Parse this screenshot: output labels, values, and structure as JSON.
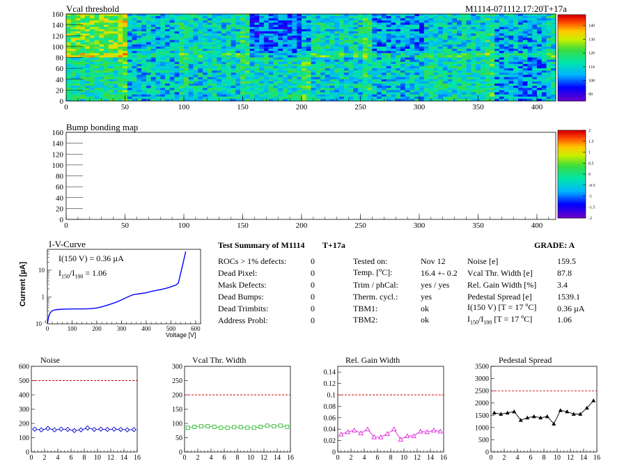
{
  "vcal_map": {
    "title": "Vcal threshold",
    "run_label": "M1114-071112.17:20T+17a",
    "xlim": [
      0,
      416
    ],
    "ylim": [
      0,
      160
    ],
    "xticks": [
      "0",
      "50",
      "100",
      "150",
      "200",
      "250",
      "300",
      "350",
      "400"
    ],
    "yticks": [
      "0",
      "20",
      "40",
      "60",
      "80",
      "100",
      "120",
      "140",
      "160"
    ],
    "zlim": [
      85,
      148
    ],
    "zticks": [
      "90",
      "100",
      "110",
      "120",
      "130",
      "140"
    ]
  },
  "bump_map": {
    "title": "Bump bonding map",
    "xlim": [
      0,
      416
    ],
    "ylim": [
      0,
      160
    ],
    "xticks": [
      "0",
      "50",
      "100",
      "150",
      "200",
      "250",
      "300",
      "350",
      "400"
    ],
    "yticks": [
      "0",
      "20",
      "40",
      "60",
      "80",
      "100",
      "120",
      "140",
      "160"
    ],
    "zlim": [
      -2,
      2
    ],
    "zticks": [
      "-2",
      "-1.5",
      "-1",
      "-0.5",
      "0",
      "0.5",
      "1",
      "1.5",
      "2"
    ]
  },
  "iv_curve": {
    "title": "I-V-Curve",
    "annotation_i150": "I(150 V) = 0.36 µA",
    "annotation_ratio_main": "I",
    "annotation_ratio_sub1": "150",
    "annotation_ratio_sep": "/I",
    "annotation_ratio_sub2": "100",
    "annotation_ratio_value": " =  1.06",
    "ylabel": "Current [µA]",
    "xlabel": "Voltage [V]",
    "xticks": [
      "0",
      "100",
      "200",
      "300",
      "400",
      "500",
      "600"
    ],
    "yticks": [
      "10",
      "1",
      "10"
    ],
    "ytick_low_exp": "-1",
    "xlim": [
      0,
      620
    ],
    "ylim_log": [
      0.1,
      60
    ],
    "curve_color": "#0000ff",
    "voltage": [
      0,
      5,
      10,
      20,
      30,
      40,
      60,
      80,
      100,
      120,
      150,
      180,
      200,
      220,
      250,
      280,
      300,
      320,
      340,
      350,
      360,
      380,
      400,
      420,
      440,
      460,
      480,
      500,
      520,
      530,
      540,
      550,
      560
    ],
    "current": [
      0.1,
      0.18,
      0.25,
      0.31,
      0.33,
      0.34,
      0.35,
      0.355,
      0.36,
      0.36,
      0.36,
      0.37,
      0.39,
      0.43,
      0.52,
      0.65,
      0.78,
      0.95,
      1.15,
      1.25,
      1.28,
      1.35,
      1.45,
      1.6,
      1.75,
      1.9,
      2.1,
      2.4,
      2.8,
      3.3,
      8,
      20,
      50
    ]
  },
  "summary": {
    "title": "Test Summary of M1114",
    "tag": "T+17a",
    "grade": "GRADE:  A",
    "defects": [
      {
        "label": "ROCs > 1% defects:",
        "value": "0"
      },
      {
        "label": "Dead Pixel:",
        "value": "0"
      },
      {
        "label": "Mask Defects:",
        "value": "0"
      },
      {
        "label": "Dead Bumps:",
        "value": "0"
      },
      {
        "label": "Dead Trimbits:",
        "value": "0"
      },
      {
        "label": "Address Probl:",
        "value": "0"
      }
    ],
    "tested_on_label": "Tested on:",
    "tested_on_value": "Nov 12",
    "temp_label_pre": "Temp. [",
    "temp_label_sup": "o",
    "temp_label_post": "C]:",
    "temp_value": "16.4 +- 0.2",
    "trim_label": "Trim / phCal:",
    "trim_value": "yes / yes",
    "therm_label": "Therm. cycl.:",
    "therm_value": "yes",
    "tbm1_label": "TBM1:",
    "tbm1_value": "ok",
    "tbm2_label": "TBM2:",
    "tbm2_value": "ok",
    "noise_label": "Noise [e]",
    "noise_value": "159.5",
    "vcal_width_label": "Vcal Thr. Width [e]",
    "vcal_width_value": "87.8",
    "gain_width_label": "Rel. Gain Width [%]",
    "gain_width_value": "3.4",
    "ped_spread_label": "Pedestal Spread [e]",
    "ped_spread_value": "1539.1",
    "i150_label_pre": "I(150 V) [T = 17 ",
    "i150_label_sup": "o",
    "i150_label_post": "C]",
    "i150_value": "0.36 µA",
    "ratio_label_i": "I",
    "ratio_label_sub1": "150",
    "ratio_label_sep": "/I",
    "ratio_label_sub2": "100",
    "ratio_label_pre": "  [T = 17 ",
    "ratio_label_sup": "o",
    "ratio_label_post": "C]",
    "ratio_value": "1.06"
  },
  "chart_data": [
    {
      "type": "scatter",
      "title": "Noise",
      "x": [
        0,
        1,
        2,
        3,
        4,
        5,
        6,
        7,
        8,
        9,
        10,
        11,
        12,
        13,
        14,
        15
      ],
      "values": [
        160,
        155,
        165,
        155,
        160,
        158,
        150,
        155,
        168,
        158,
        160,
        158,
        160,
        158,
        155,
        157
      ],
      "ylim": [
        0,
        600
      ],
      "xlim": [
        0,
        16
      ],
      "yticks": [
        "0",
        "100",
        "200",
        "300",
        "400",
        "500",
        "600"
      ],
      "xticks": [
        "0",
        "2",
        "4",
        "6",
        "8",
        "10",
        "12",
        "14",
        "16"
      ],
      "threshold": 500,
      "color": "#0000cc",
      "marker": "diamond"
    },
    {
      "type": "scatter",
      "title": "Vcal Thr. Width",
      "x": [
        0,
        1,
        2,
        3,
        4,
        5,
        6,
        7,
        8,
        9,
        10,
        11,
        12,
        13,
        14,
        15
      ],
      "values": [
        85,
        88,
        90,
        90,
        88,
        85,
        85,
        87,
        87,
        85,
        85,
        88,
        92,
        90,
        92,
        88
      ],
      "ylim": [
        0,
        300
      ],
      "xlim": [
        0,
        16
      ],
      "yticks": [
        "0",
        "50",
        "100",
        "150",
        "200",
        "250",
        "300"
      ],
      "xticks": [
        "0",
        "2",
        "4",
        "6",
        "8",
        "10",
        "12",
        "14",
        "16"
      ],
      "threshold": 200,
      "color": "#33bb33",
      "marker": "square"
    },
    {
      "type": "scatter",
      "title": "Rel. Gain Width",
      "x": [
        0,
        1,
        2,
        3,
        4,
        5,
        6,
        7,
        8,
        9,
        10,
        11,
        12,
        13,
        14,
        15
      ],
      "values": [
        0.031,
        0.035,
        0.038,
        0.033,
        0.04,
        0.026,
        0.026,
        0.032,
        0.04,
        0.022,
        0.028,
        0.028,
        0.036,
        0.035,
        0.038,
        0.036
      ],
      "ylim": [
        0,
        0.15
      ],
      "xlim": [
        0,
        16
      ],
      "yticks": [
        "0",
        "0.02",
        "0.04",
        "0.06",
        "0.08",
        "0.1",
        "0.12",
        "0.14"
      ],
      "xticks": [
        "0",
        "2",
        "4",
        "6",
        "8",
        "10",
        "12",
        "14",
        "16"
      ],
      "threshold": 0.1,
      "color": "#dd22dd",
      "marker": "triangle"
    },
    {
      "type": "scatter",
      "title": "Pedestal Spread",
      "x": [
        0,
        1,
        2,
        3,
        4,
        5,
        6,
        7,
        8,
        9,
        10,
        11,
        12,
        13,
        14,
        15
      ],
      "values": [
        1600,
        1550,
        1600,
        1650,
        1300,
        1400,
        1450,
        1400,
        1450,
        1150,
        1700,
        1650,
        1550,
        1550,
        1800,
        2100
      ],
      "ylim": [
        0,
        3500
      ],
      "xlim": [
        0,
        16
      ],
      "yticks": [
        "0",
        "500",
        "1000",
        "1500",
        "2000",
        "2500",
        "3000",
        "3500"
      ],
      "xticks": [
        "0",
        "2",
        "4",
        "6",
        "8",
        "10",
        "12",
        "14",
        "16"
      ],
      "threshold": 2500,
      "color": "#000000",
      "marker": "filled-triangle"
    }
  ]
}
